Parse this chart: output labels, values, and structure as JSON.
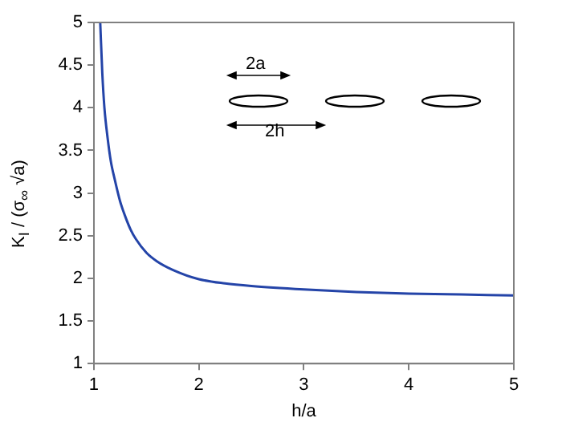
{
  "chart_data": {
    "type": "line",
    "xlabel": "h/a",
    "ylabel": "K$_{I}$ / (σ$_{∞}$ √a)",
    "x": [
      1.06,
      1.08,
      1.1,
      1.13,
      1.16,
      1.2,
      1.25,
      1.3,
      1.35,
      1.4,
      1.5,
      1.6,
      1.75,
      2,
      2.25,
      2.5,
      3,
      3.5,
      4,
      4.5,
      5
    ],
    "series": [
      {
        "color": "#2444a8",
        "values": [
          5,
          4.4,
          4.0,
          3.65,
          3.38,
          3.15,
          2.9,
          2.72,
          2.57,
          2.46,
          2.3,
          2.2,
          2.1,
          1.99,
          1.94,
          1.91,
          1.87,
          1.84,
          1.82,
          1.81,
          1.8
        ]
      }
    ],
    "xlim": [
      1,
      5
    ],
    "ylim": [
      1,
      5
    ],
    "xticks": [
      1,
      2,
      3,
      4,
      5
    ],
    "yticks": [
      1,
      1.5,
      2,
      2.5,
      3,
      3.5,
      4,
      4.5,
      5
    ],
    "marker": "none",
    "line_style": "solid",
    "legend": false,
    "annotations": [
      "2a",
      "2h"
    ]
  }
}
